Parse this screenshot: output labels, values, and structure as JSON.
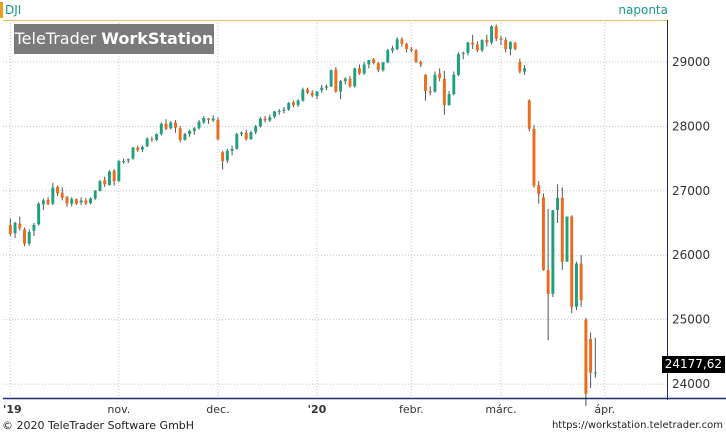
{
  "header": {
    "symbol": "DJI",
    "period": "naponta"
  },
  "logo": {
    "brand_light": "TeleTrader",
    "brand_bold": "WorkStation"
  },
  "footer": {
    "copyright": "© 2020 TeleTrader Software GmbH",
    "url": "https://workstation.teletrader.com"
  },
  "last_price": "24177,62",
  "colors": {
    "up": "#1ea080",
    "down": "#ee6a1c",
    "wick": "#555555",
    "grid": "#c8c8c8",
    "price_line": "#e8c070",
    "axis_frame": "#1e2e6e"
  },
  "chart_data": {
    "type": "candlestick",
    "title": "",
    "xlabel": "",
    "ylabel": "",
    "y_axis_position": "right",
    "ylim": [
      23800,
      29650
    ],
    "yticks": [
      24000,
      25000,
      26000,
      27000,
      28000,
      29000
    ],
    "ytick_labels": [
      "24000",
      "25000",
      "26000",
      "27000",
      "28000",
      "29000"
    ],
    "xtick_labels": [
      {
        "label": "'19",
        "index": 0
      },
      {
        "label": "nov.",
        "index": 23
      },
      {
        "label": "dec.",
        "index": 44
      },
      {
        "label": "'20",
        "index": 65
      },
      {
        "label": "febr.",
        "index": 85
      },
      {
        "label": "márc.",
        "index": 104
      },
      {
        "label": "ápr.",
        "index": 126
      }
    ],
    "n_slots": 138,
    "grid": true,
    "candles": [
      [
        26470,
        26570,
        26300,
        26330
      ],
      [
        26340,
        26520,
        26270,
        26500
      ],
      [
        26490,
        26600,
        26380,
        26420
      ],
      [
        26400,
        26430,
        26140,
        26180
      ],
      [
        26180,
        26400,
        26150,
        26360
      ],
      [
        26380,
        26500,
        26300,
        26470
      ],
      [
        26480,
        26820,
        26460,
        26800
      ],
      [
        26790,
        26880,
        26700,
        26850
      ],
      [
        26860,
        26900,
        26780,
        26790
      ],
      [
        26800,
        27120,
        26780,
        27050
      ],
      [
        27060,
        27080,
        26920,
        26960
      ],
      [
        26970,
        27050,
        26850,
        26890
      ],
      [
        26900,
        26920,
        26750,
        26800
      ],
      [
        26800,
        26900,
        26760,
        26870
      ],
      [
        26870,
        26880,
        26780,
        26800
      ],
      [
        26820,
        26900,
        26780,
        26850
      ],
      [
        26850,
        26890,
        26780,
        26800
      ],
      [
        26810,
        26900,
        26790,
        26880
      ],
      [
        26880,
        27010,
        26860,
        27000
      ],
      [
        27000,
        27170,
        26990,
        27150
      ],
      [
        27160,
        27220,
        27060,
        27100
      ],
      [
        27090,
        27320,
        27080,
        27300
      ],
      [
        27310,
        27340,
        27080,
        27150
      ],
      [
        27150,
        27480,
        27140,
        27460
      ],
      [
        27460,
        27500,
        27420,
        27460
      ],
      [
        27470,
        27500,
        27430,
        27490
      ],
      [
        27500,
        27680,
        27480,
        27670
      ],
      [
        27670,
        27700,
        27600,
        27630
      ],
      [
        27640,
        27700,
        27600,
        27680
      ],
      [
        27690,
        27830,
        27680,
        27810
      ],
      [
        27800,
        27840,
        27760,
        27790
      ],
      [
        27790,
        27890,
        27770,
        27880
      ],
      [
        27880,
        28060,
        27860,
        28040
      ],
      [
        28040,
        28110,
        27940,
        27960
      ],
      [
        27970,
        28080,
        27950,
        28060
      ],
      [
        28060,
        28100,
        27900,
        27980
      ],
      [
        27970,
        28000,
        27750,
        27790
      ],
      [
        27790,
        27900,
        27780,
        27880
      ],
      [
        27880,
        27950,
        27840,
        27930
      ],
      [
        27930,
        27990,
        27870,
        27970
      ],
      [
        27970,
        28100,
        27950,
        28070
      ],
      [
        28060,
        28160,
        28040,
        28130
      ],
      [
        28120,
        28130,
        28040,
        28100
      ],
      [
        28090,
        28170,
        28070,
        28120
      ],
      [
        28100,
        28140,
        27780,
        27800
      ],
      [
        27600,
        27620,
        27330,
        27460
      ],
      [
        27470,
        27650,
        27430,
        27620
      ],
      [
        27620,
        27700,
        27550,
        27650
      ],
      [
        27650,
        27900,
        27640,
        27880
      ],
      [
        27880,
        27920,
        27850,
        27900
      ],
      [
        27900,
        27950,
        27780,
        27800
      ],
      [
        27800,
        27930,
        27790,
        27910
      ],
      [
        27910,
        28020,
        27880,
        28000
      ],
      [
        28000,
        28150,
        27980,
        28120
      ],
      [
        28120,
        28160,
        28060,
        28090
      ],
      [
        28090,
        28180,
        28070,
        28140
      ],
      [
        28150,
        28240,
        28120,
        28230
      ],
      [
        28230,
        28270,
        28180,
        28240
      ],
      [
        28240,
        28300,
        28200,
        28260
      ],
      [
        28260,
        28380,
        28240,
        28360
      ],
      [
        28370,
        28400,
        28300,
        28330
      ],
      [
        28330,
        28420,
        28300,
        28400
      ],
      [
        28400,
        28600,
        28380,
        28570
      ],
      [
        28570,
        28600,
        28500,
        28520
      ],
      [
        28520,
        28560,
        28450,
        28480
      ],
      [
        28470,
        28550,
        28420,
        28540
      ],
      [
        28560,
        28640,
        28520,
        28600
      ],
      [
        28600,
        28650,
        28560,
        28620
      ],
      [
        28620,
        28880,
        28610,
        28870
      ],
      [
        28880,
        28920,
        28520,
        28540
      ],
      [
        28540,
        28720,
        28420,
        28700
      ],
      [
        28700,
        28760,
        28650,
        28740
      ],
      [
        28740,
        28780,
        28600,
        28620
      ],
      [
        28620,
        28910,
        28600,
        28900
      ],
      [
        28900,
        28960,
        28800,
        28820
      ],
      [
        28820,
        29000,
        28800,
        28960
      ],
      [
        28960,
        29030,
        28900,
        29030
      ],
      [
        29040,
        29060,
        28960,
        28980
      ],
      [
        28980,
        29000,
        28840,
        28870
      ],
      [
        28870,
        29000,
        28850,
        28990
      ],
      [
        28990,
        29200,
        28980,
        29180
      ],
      [
        29180,
        29250,
        29140,
        29210
      ],
      [
        29200,
        29380,
        29180,
        29350
      ],
      [
        29350,
        29380,
        29240,
        29280
      ],
      [
        29280,
        29300,
        29150,
        29200
      ],
      [
        29200,
        29230,
        29150,
        29180
      ],
      [
        29180,
        29200,
        28980,
        29000
      ],
      [
        29000,
        29020,
        28920,
        28960
      ],
      [
        28800,
        28810,
        28400,
        28550
      ],
      [
        28550,
        28620,
        28480,
        28530
      ],
      [
        28540,
        28850,
        28520,
        28800
      ],
      [
        28820,
        28900,
        28700,
        28750
      ],
      [
        28740,
        28860,
        28180,
        28330
      ],
      [
        28330,
        28550,
        28320,
        28500
      ],
      [
        28500,
        28850,
        28480,
        28800
      ],
      [
        28800,
        29150,
        28780,
        29120
      ],
      [
        29130,
        29160,
        29040,
        29140
      ],
      [
        29140,
        29310,
        29100,
        29300
      ],
      [
        29300,
        29420,
        29200,
        29270
      ],
      [
        29270,
        29320,
        29150,
        29180
      ],
      [
        29180,
        29350,
        29150,
        29340
      ],
      [
        29340,
        29420,
        29240,
        29300
      ],
      [
        29300,
        29570,
        29270,
        29550
      ],
      [
        29550,
        29580,
        29320,
        29360
      ],
      [
        29360,
        29400,
        29260,
        29340
      ],
      [
        29340,
        29380,
        29150,
        29200
      ],
      [
        29200,
        29320,
        29100,
        29310
      ],
      [
        29290,
        29310,
        29180,
        29200
      ],
      [
        29000,
        29050,
        28820,
        28850
      ],
      [
        28850,
        28950,
        28800,
        28900
      ],
      [
        28400,
        28420,
        27920,
        27960
      ],
      [
        27960,
        28020,
        27050,
        27080
      ],
      [
        27090,
        27150,
        26800,
        26950
      ],
      [
        26900,
        26960,
        25760,
        25770
      ],
      [
        25770,
        26720,
        24680,
        25400
      ],
      [
        25400,
        26700,
        25350,
        26700
      ],
      [
        26700,
        27100,
        26500,
        26890
      ],
      [
        26890,
        27050,
        25770,
        25900
      ],
      [
        25900,
        26600,
        25900,
        26600
      ],
      [
        26600,
        26620,
        25100,
        25200
      ],
      [
        25200,
        25900,
        25150,
        25870
      ],
      [
        25870,
        26000,
        25200,
        25300
      ],
      [
        25000,
        25030,
        23660,
        23850
      ],
      [
        24700,
        24800,
        23940,
        24180
      ],
      [
        24180,
        24720,
        24100,
        24180
      ]
    ]
  }
}
